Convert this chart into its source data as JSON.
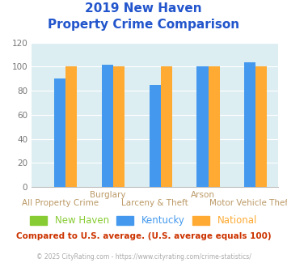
{
  "title_line1": "2019 New Haven",
  "title_line2": "Property Crime Comparison",
  "cat_top_labels": [
    "",
    "Burglary",
    "",
    "Arson",
    ""
  ],
  "cat_bot_labels": [
    "All Property Crime",
    "",
    "Larceny & Theft",
    "",
    "Motor Vehicle Theft"
  ],
  "new_haven": [
    0,
    0,
    0,
    0,
    0
  ],
  "kentucky": [
    90,
    102,
    85,
    100,
    104
  ],
  "national": [
    100,
    100,
    100,
    100,
    100
  ],
  "new_haven_color": "#88cc33",
  "kentucky_color": "#4499ee",
  "national_color": "#ffaa33",
  "plot_bg": "#ddeef2",
  "ylim": [
    0,
    120
  ],
  "yticks": [
    0,
    20,
    40,
    60,
    80,
    100,
    120
  ],
  "legend_labels": [
    "New Haven",
    "Kentucky",
    "National"
  ],
  "footnote1": "Compared to U.S. average. (U.S. average equals 100)",
  "footnote2": "© 2025 CityRating.com - https://www.cityrating.com/crime-statistics/",
  "title_color": "#2255cc",
  "footnote1_color": "#cc3300",
  "footnote2_color": "#aaaaaa",
  "tick_label_color": "#bb9966",
  "ytick_color": "#777777",
  "title_fontsize": 11,
  "label_fontsize": 7.5,
  "legend_fontsize": 8.5,
  "footnote1_fontsize": 7.5,
  "footnote2_fontsize": 5.5
}
